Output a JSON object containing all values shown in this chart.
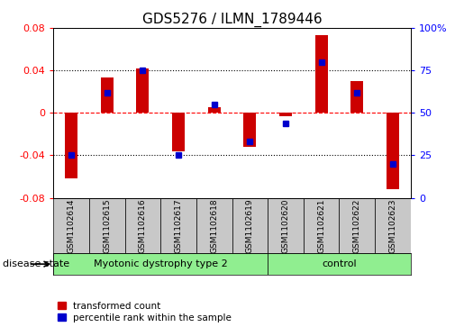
{
  "title": "GDS5276 / ILMN_1789446",
  "samples": [
    "GSM1102614",
    "GSM1102615",
    "GSM1102616",
    "GSM1102617",
    "GSM1102618",
    "GSM1102619",
    "GSM1102620",
    "GSM1102621",
    "GSM1102622",
    "GSM1102623"
  ],
  "red_values": [
    -0.062,
    0.033,
    0.042,
    -0.036,
    0.005,
    -0.032,
    -0.003,
    0.073,
    0.03,
    -0.072
  ],
  "blue_percentiles": [
    25,
    62,
    75,
    25,
    55,
    33,
    44,
    80,
    62,
    20
  ],
  "ylim": [
    -0.08,
    0.08
  ],
  "yticks_left": [
    -0.08,
    -0.04,
    0,
    0.04,
    0.08
  ],
  "yticks_right": [
    0,
    25,
    50,
    75,
    100
  ],
  "group_spans": [
    [
      0,
      5,
      "Myotonic dystrophy type 2"
    ],
    [
      6,
      9,
      "control"
    ]
  ],
  "disease_state_label": "disease state",
  "legend_red_label": "transformed count",
  "legend_blue_label": "percentile rank within the sample",
  "red_color": "#CC0000",
  "blue_color": "#0000CC",
  "bar_width": 0.35,
  "label_area_bg": "#C8C8C8",
  "group_area_bg": "#90EE90",
  "title_fontsize": 11,
  "tick_fontsize": 8,
  "label_fontsize": 6.5,
  "group_fontsize": 8,
  "legend_fontsize": 7.5
}
